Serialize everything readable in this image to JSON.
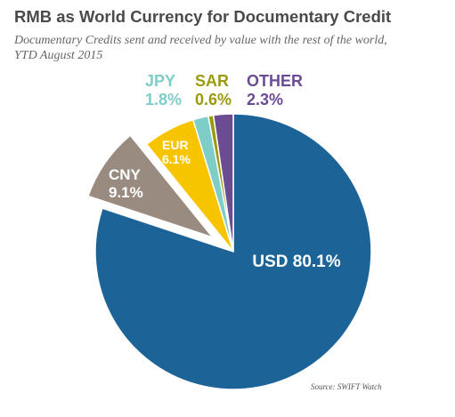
{
  "title": "RMB as World Currency for Documentary Credit",
  "subtitle_line1": "Documentary Credits sent and received by value with the rest of the world,",
  "subtitle_line2": "YTD August 2015",
  "source": "Source: SWIFT Watch",
  "chart_data": {
    "type": "pie",
    "title": "RMB as World Currency for Documentary Credit",
    "subtitle": "Documentary Credits sent and received by value with the rest of the world, YTD August 2015",
    "unit": "%",
    "exploded": "CNY",
    "slices": [
      {
        "name": "USD",
        "label": "USD",
        "value_label": "80.1%",
        "value": 80.1,
        "color": "#1c6398"
      },
      {
        "name": "CNY",
        "label": "CNY",
        "value_label": "9.1%",
        "value": 9.1,
        "color": "#9a8b80"
      },
      {
        "name": "EUR",
        "label": "EUR",
        "value_label": "6.1%",
        "value": 6.1,
        "color": "#f7c500"
      },
      {
        "name": "JPY",
        "label": "JPY",
        "value_label": "1.8%",
        "value": 1.8,
        "color": "#7ecdc8"
      },
      {
        "name": "SAR",
        "label": "SAR",
        "value_label": "0.6%",
        "value": 0.6,
        "color": "#9a9a0d"
      },
      {
        "name": "OTHER",
        "label": "OTHER",
        "value_label": "2.3%",
        "value": 2.3,
        "color": "#6b4c93"
      }
    ]
  }
}
